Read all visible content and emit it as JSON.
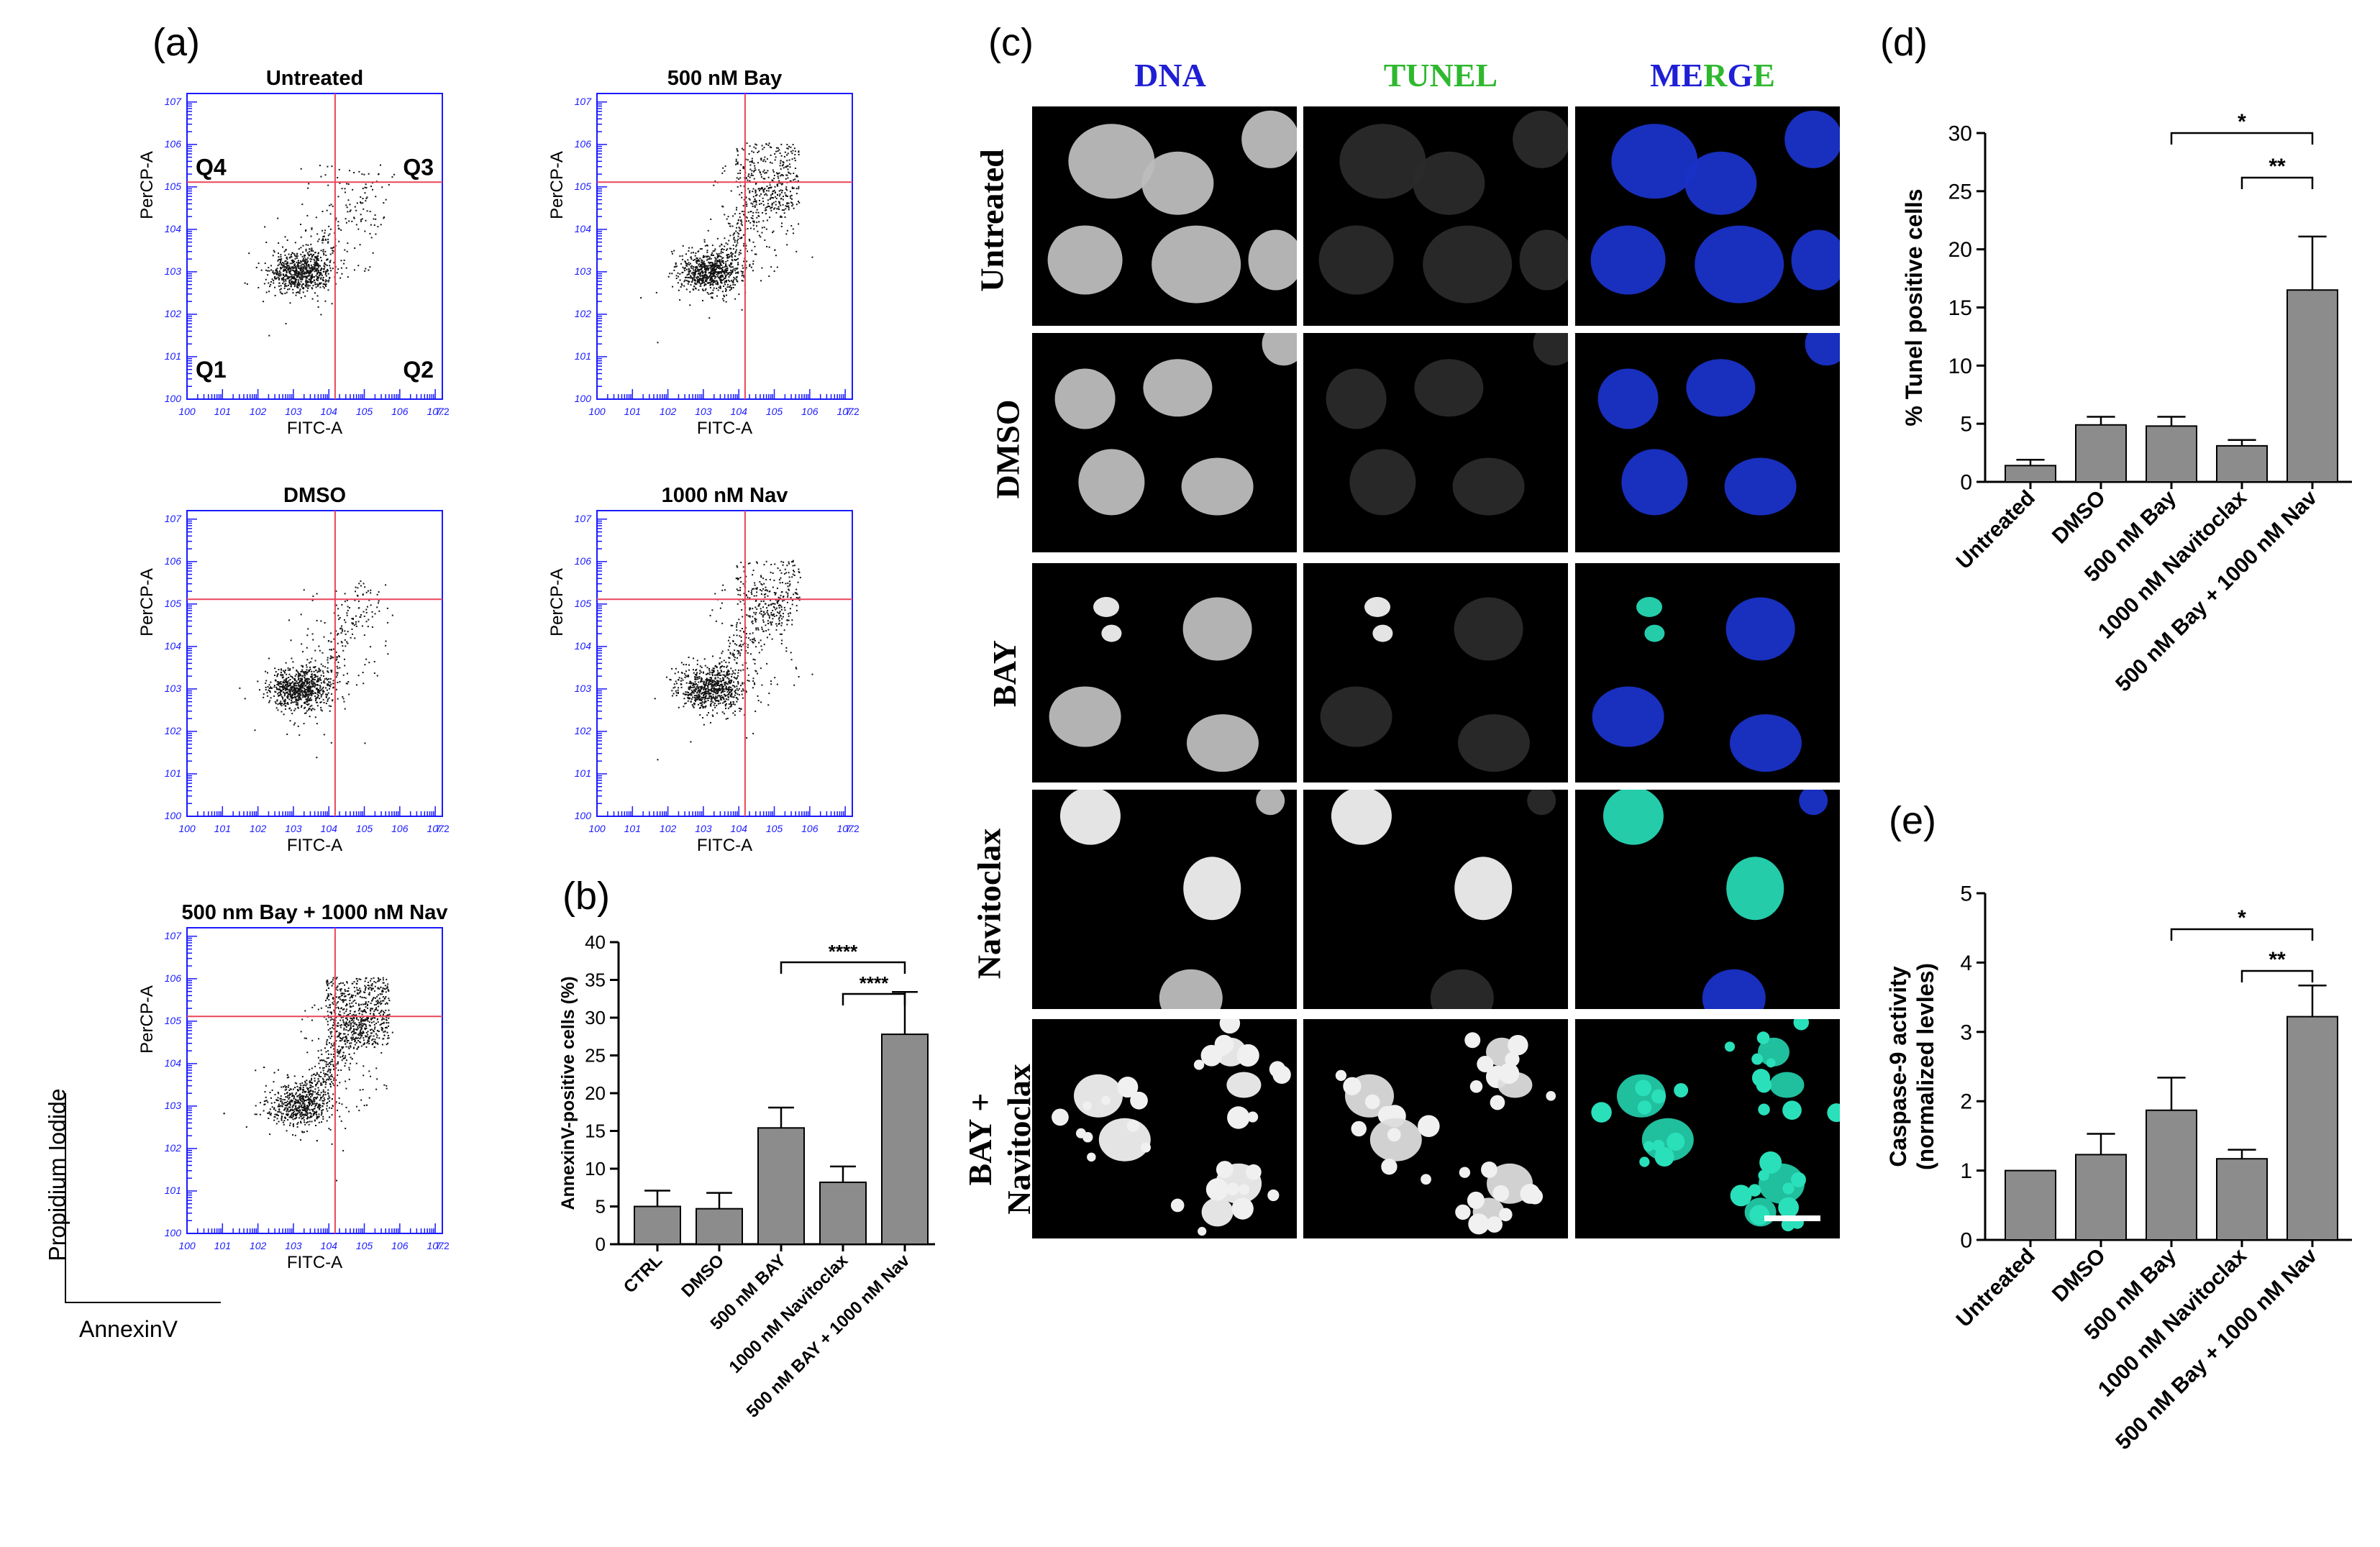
{
  "panels": {
    "a": "(a)",
    "b": "(b)",
    "c": "(c)",
    "d": "(d)",
    "e": "(e)"
  },
  "flow": {
    "plots": [
      {
        "title": "Untreated",
        "quadrant_labels": [
          "Q4",
          "Q3",
          "Q1",
          "Q2"
        ]
      },
      {
        "title": "500 nM Bay"
      },
      {
        "title": "DMSO"
      },
      {
        "title": "1000 nM Nav"
      },
      {
        "title": "500 nm Bay + 1000 nM Nav"
      }
    ],
    "y_axis_label": "PerCP-A",
    "x_axis_label": "FITC-A",
    "legend_y": "Propidium Iodide",
    "legend_x": "AnnexinV",
    "tick_color": "#1a1aff",
    "gate_color": "#e8455a"
  },
  "microscopy": {
    "columns": [
      "DNA",
      "TUNEL",
      "MERGE"
    ],
    "merge_letters": [
      {
        "t": "ME",
        "c": "#1f1fd6"
      },
      {
        "t": "R",
        "c": "#2fb82f"
      },
      {
        "t": "G",
        "c": "#1f1fd6"
      },
      {
        "t": "E",
        "c": "#2fb82f"
      }
    ],
    "rows": [
      "Untreated",
      "DMSO",
      "BAY",
      "Navitoclax",
      "BAY + Navitoclax"
    ],
    "column_colors": {
      "DNA": "#1f1fd6",
      "TUNEL": "#2fb82f"
    }
  },
  "chart_data": [
    {
      "panel": "b",
      "type": "bar",
      "categories": [
        "CTRL",
        "DMSO",
        "500 nM BAY",
        "1000 nM Navitoclax",
        "500 nM BAY + 1000 nM Nav"
      ],
      "values": [
        5,
        4.7,
        15.4,
        8.2,
        27.8
      ],
      "errors": [
        2.1,
        2.1,
        2.7,
        2.1,
        5.6
      ],
      "ylabel": "AnnexinV-positive cells (%)",
      "ylim": [
        0,
        40
      ],
      "yticks": [
        "0",
        "5",
        "10",
        "15",
        "20",
        "25",
        "30",
        "35",
        "40"
      ],
      "significance": [
        {
          "from": 2,
          "to": 4,
          "label": "****"
        },
        {
          "from": 3,
          "to": 4,
          "label": "****"
        }
      ],
      "bar_color": "#8c8c8c"
    },
    {
      "panel": "d",
      "type": "bar",
      "categories": [
        "Untreated",
        "DMSO",
        "500 nM Bay",
        "1000 nM Navitoclax",
        "500 nM Bay + 1000 nM Nav"
      ],
      "values": [
        1.4,
        4.9,
        4.8,
        3.1,
        16.5
      ],
      "errors": [
        0.5,
        0.7,
        0.8,
        0.5,
        4.6
      ],
      "ylabel": "% Tunel positive cells",
      "ylim": [
        0,
        30
      ],
      "yticks": [
        "0",
        "5",
        "10",
        "15",
        "20",
        "25",
        "30"
      ],
      "significance": [
        {
          "from": 2,
          "to": 4,
          "label": "*"
        },
        {
          "from": 3,
          "to": 4,
          "label": "**"
        }
      ],
      "bar_color": "#8c8c8c"
    },
    {
      "panel": "e",
      "type": "bar",
      "categories": [
        "Untreated",
        "DMSO",
        "500 nM Bay",
        "1000 nM Navitoclax",
        "500 nM Bay + 1000 nM Nav"
      ],
      "values": [
        1.0,
        1.23,
        1.87,
        1.17,
        3.22
      ],
      "errors": [
        0,
        0.3,
        0.47,
        0.13,
        0.45
      ],
      "ylabel": "Caspase-9 activity (normalized levles)",
      "ylabel_lines": [
        "Caspase-9 activity",
        "(normalized levles)"
      ],
      "ylim": [
        0,
        5
      ],
      "yticks": [
        "0",
        "1",
        "2",
        "3",
        "4",
        "5"
      ],
      "significance": [
        {
          "from": 2,
          "to": 4,
          "label": "*"
        },
        {
          "from": 3,
          "to": 4,
          "label": "**"
        }
      ],
      "bar_color": "#8c8c8c"
    }
  ]
}
